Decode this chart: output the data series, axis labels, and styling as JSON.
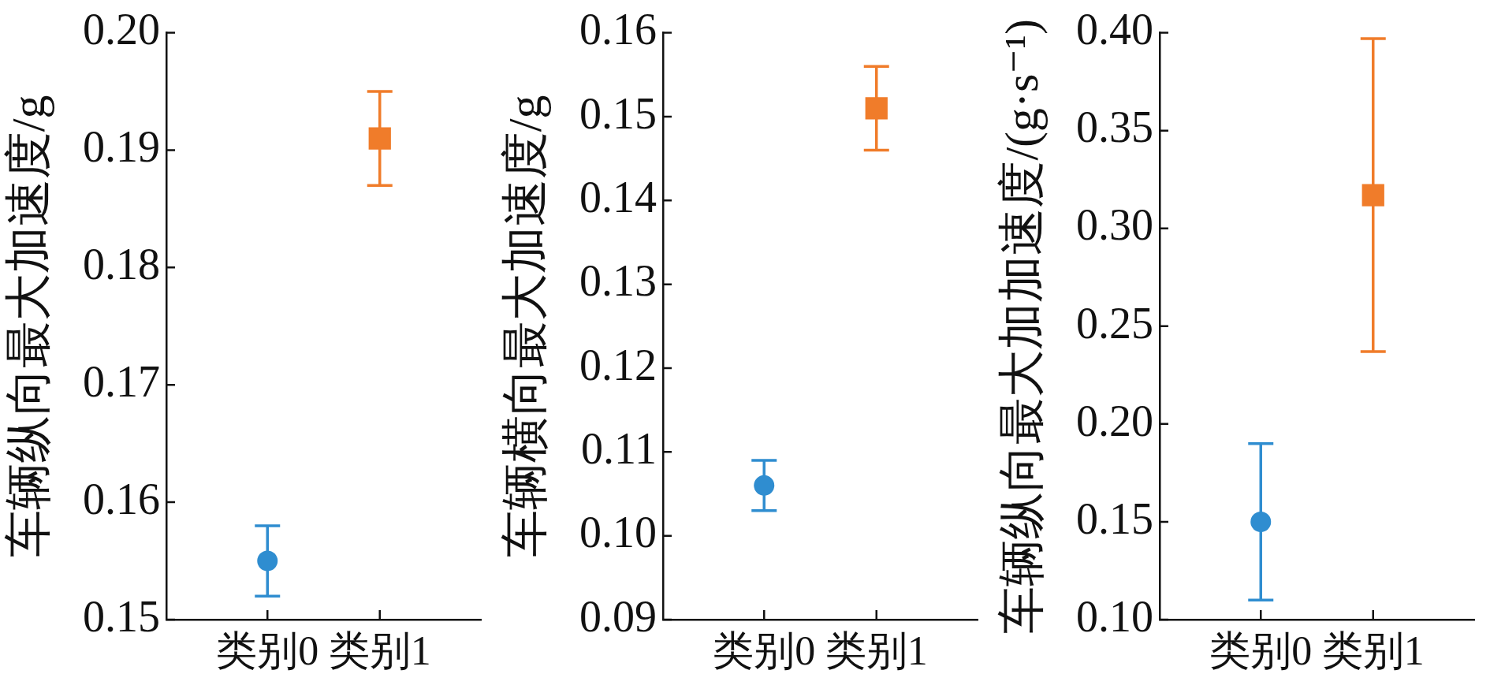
{
  "chart_data": [
    {
      "type": "scatter",
      "ylabel": "车辆纵向最大加速度/g",
      "categories": [
        "类别0",
        "类别1"
      ],
      "series": [
        {
          "color": "#2f8dd0",
          "marker": "circle",
          "values": [
            0.155,
            null
          ],
          "errors": [
            0.003,
            null
          ]
        },
        {
          "color": "#f07c2a",
          "marker": "square",
          "values": [
            null,
            0.191
          ],
          "errors": [
            null,
            0.004
          ]
        }
      ],
      "ylim": [
        0.15,
        0.2
      ],
      "yticks": [
        0.15,
        0.16,
        0.17,
        0.18,
        0.19,
        {
          "value": 0.2,
          "label": "0.20"
        }
      ],
      "grid": false,
      "legend": false
    },
    {
      "type": "scatter",
      "ylabel": "车辆横向最大加速度/g",
      "categories": [
        "类别0",
        "类别1"
      ],
      "series": [
        {
          "color": "#2f8dd0",
          "marker": "circle",
          "values": [
            0.106,
            null
          ],
          "errors": [
            0.003,
            null
          ]
        },
        {
          "color": "#f07c2a",
          "marker": "square",
          "values": [
            null,
            0.151
          ],
          "errors": [
            null,
            0.005
          ]
        }
      ],
      "ylim": [
        0.09,
        0.16
      ],
      "yticks": [
        0.09,
        {
          "value": 0.1,
          "label": "0.10"
        },
        0.11,
        0.12,
        0.13,
        0.14,
        0.15,
        0.16
      ],
      "grid": false,
      "legend": false
    },
    {
      "type": "scatter",
      "ylabel": "车辆纵向最大加加速度/(g·s⁻¹)",
      "categories": [
        "类别0",
        "类别1"
      ],
      "series": [
        {
          "color": "#2f8dd0",
          "marker": "circle",
          "values": [
            0.15,
            null
          ],
          "errors": [
            0.04,
            null
          ]
        },
        {
          "color": "#f07c2a",
          "marker": "square",
          "values": [
            null,
            0.317
          ],
          "errors": [
            null,
            0.08
          ]
        }
      ],
      "ylim": [
        0.1,
        0.4
      ],
      "yticks": [
        {
          "value": 0.1,
          "label": "0.10"
        },
        0.15,
        {
          "value": 0.2,
          "label": "0.20"
        },
        0.25,
        {
          "value": 0.3,
          "label": "0.30"
        },
        0.35,
        {
          "value": 0.4,
          "label": "0.40"
        }
      ],
      "grid": false,
      "legend": false
    }
  ]
}
